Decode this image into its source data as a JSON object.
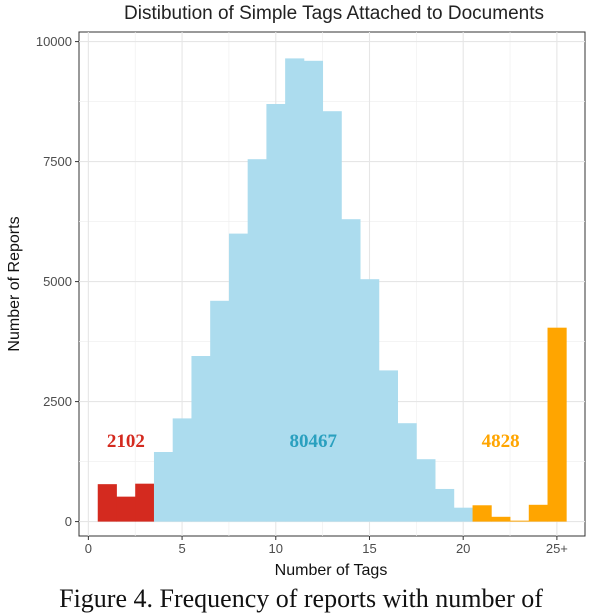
{
  "chart_data": {
    "type": "bar",
    "title": "Distibution of Simple Tags Attached to Documents",
    "xlabel": "Number of Tags",
    "ylabel": "Number of Reports",
    "x_ticks": [
      "0",
      "5",
      "10",
      "15",
      "20",
      "25+"
    ],
    "y_ticks": [
      "0",
      "2500",
      "5000",
      "7500",
      "10000"
    ],
    "xlim": [
      -0.5,
      26.5
    ],
    "ylim": [
      -300,
      10200
    ],
    "grid": true,
    "bins": [
      1,
      2,
      3,
      4,
      5,
      6,
      7,
      8,
      9,
      10,
      11,
      12,
      13,
      14,
      15,
      16,
      17,
      18,
      19,
      20,
      21,
      22,
      23,
      24,
      25
    ],
    "values": [
      780,
      520,
      790,
      1450,
      2150,
      3450,
      4600,
      6000,
      7550,
      8700,
      9650,
      9600,
      8550,
      6300,
      5050,
      3150,
      2050,
      1300,
      680,
      290,
      340,
      100,
      20,
      350,
      4040
    ],
    "colors": {
      "low": "#d42a1f",
      "mid": "#acdcee",
      "high": "#ffa500"
    },
    "groups": [
      {
        "name": "low",
        "from": 1,
        "to": 3,
        "total": "2102",
        "color": "#d42a1f",
        "label_x": 2,
        "label_y": 1550
      },
      {
        "name": "mid",
        "from": 4,
        "to": 20,
        "total": "80467",
        "color": "#2aa0bf",
        "label_x": 12,
        "label_y": 1550
      },
      {
        "name": "high",
        "from": 21,
        "to": 25,
        "total": "4828",
        "color": "#ffa500",
        "label_x": 22,
        "label_y": 1550
      }
    ]
  },
  "caption": "Figure 4. Frequency of reports with number of"
}
